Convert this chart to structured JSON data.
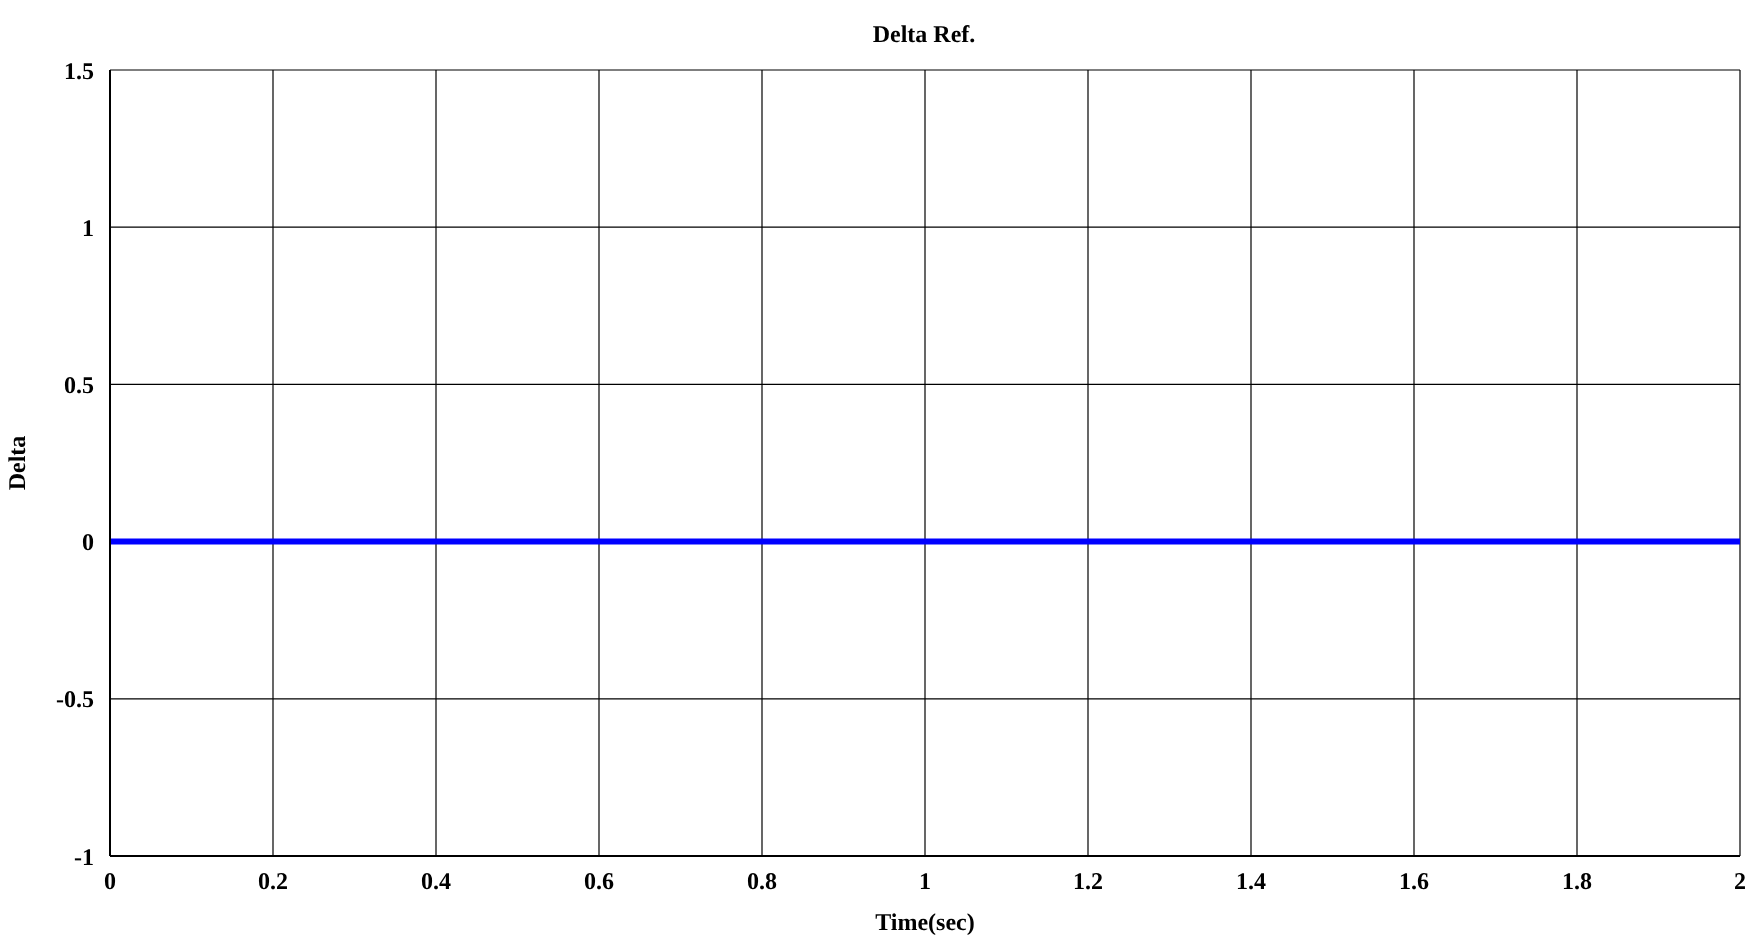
{
  "chart_data": {
    "type": "line",
    "title": "Delta Ref.",
    "xlabel": "Time(sec)",
    "ylabel": "Delta",
    "x": [
      0,
      2
    ],
    "series": [
      {
        "color": "#0000ff",
        "values": [
          0,
          0
        ]
      }
    ],
    "xlim": [
      0,
      2
    ],
    "xticks": [
      0,
      0.2,
      0.4,
      0.6,
      0.8,
      1,
      1.2,
      1.4,
      1.6,
      1.8,
      2
    ],
    "ylim": [
      -1,
      1.5
    ],
    "yticks": [
      -1,
      -0.5,
      0,
      0.5,
      1,
      1.5
    ],
    "grid": true,
    "legend": false,
    "marker": "none",
    "line_style": "solid"
  }
}
